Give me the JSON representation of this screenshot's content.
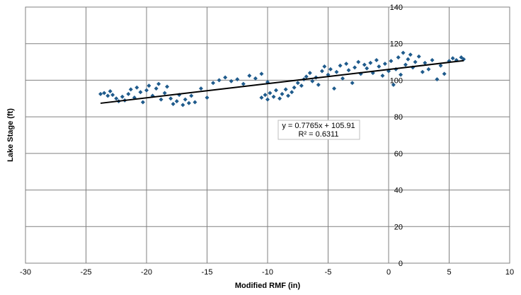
{
  "chart_data": {
    "type": "scatter",
    "title": "",
    "xlabel": "Modified RMF (in)",
    "ylabel": "Lake Stage (ft)",
    "xlim": [
      -30,
      10
    ],
    "ylim": [
      0,
      140
    ],
    "x_ticks": [
      "-30",
      "-25",
      "-20",
      "-15",
      "-10",
      "-5",
      "0",
      "5",
      "10"
    ],
    "y_ticks": [
      "0",
      "20",
      "40",
      "60",
      "80",
      "100",
      "120",
      "140"
    ],
    "grid": true,
    "marker_color": "#1f5b8c",
    "trendline": {
      "equation": "y = 0.7765x + 105.91",
      "r_squared": "R² = 0.6311",
      "slope": 0.7765,
      "intercept": 105.91,
      "x_range": [
        -23.8,
        6.2
      ],
      "color": "#000000"
    },
    "series": [
      {
        "points": [
          [
            -23.8,
            92.5
          ],
          [
            -23.5,
            93.0
          ],
          [
            -23.2,
            91.5
          ],
          [
            -23.0,
            94.0
          ],
          [
            -22.8,
            92.0
          ],
          [
            -22.5,
            90.0
          ],
          [
            -22.3,
            88.5
          ],
          [
            -22.0,
            91.0
          ],
          [
            -21.8,
            89.0
          ],
          [
            -21.5,
            92.5
          ],
          [
            -21.3,
            95.0
          ],
          [
            -21.0,
            90.5
          ],
          [
            -20.8,
            96.0
          ],
          [
            -20.5,
            93.5
          ],
          [
            -20.3,
            88.0
          ],
          [
            -20.0,
            94.5
          ],
          [
            -19.8,
            97.0
          ],
          [
            -19.5,
            91.5
          ],
          [
            -19.2,
            95.5
          ],
          [
            -19.0,
            98.0
          ],
          [
            -18.8,
            89.5
          ],
          [
            -18.5,
            93.0
          ],
          [
            -18.3,
            96.5
          ],
          [
            -18.0,
            90.0
          ],
          [
            -17.8,
            87.0
          ],
          [
            -17.5,
            88.5
          ],
          [
            -17.3,
            92.0
          ],
          [
            -17.0,
            86.5
          ],
          [
            -16.8,
            89.5
          ],
          [
            -16.5,
            87.5
          ],
          [
            -16.3,
            91.5
          ],
          [
            -16.0,
            88.0
          ],
          [
            -15.5,
            95.5
          ],
          [
            -15.0,
            90.5
          ],
          [
            -14.5,
            98.5
          ],
          [
            -14.0,
            100.0
          ],
          [
            -13.5,
            101.5
          ],
          [
            -13.0,
            99.5
          ],
          [
            -12.5,
            100.5
          ],
          [
            -12.0,
            98.0
          ],
          [
            -11.5,
            102.5
          ],
          [
            -11.0,
            101.0
          ],
          [
            -10.5,
            103.5
          ],
          [
            -10.0,
            99.0
          ],
          [
            -10.5,
            90.5
          ],
          [
            -10.2,
            92.0
          ],
          [
            -10.0,
            89.5
          ],
          [
            -9.8,
            93.0
          ],
          [
            -9.5,
            91.0
          ],
          [
            -9.3,
            94.5
          ],
          [
            -9.0,
            90.0
          ],
          [
            -8.8,
            92.5
          ],
          [
            -8.5,
            95.0
          ],
          [
            -8.3,
            91.5
          ],
          [
            -8.0,
            93.5
          ],
          [
            -7.8,
            96.0
          ],
          [
            -7.5,
            98.5
          ],
          [
            -7.2,
            97.0
          ],
          [
            -7.0,
            100.5
          ],
          [
            -6.8,
            102.0
          ],
          [
            -6.5,
            104.0
          ],
          [
            -6.3,
            99.5
          ],
          [
            -6.0,
            101.5
          ],
          [
            -5.8,
            97.5
          ],
          [
            -5.5,
            105.0
          ],
          [
            -5.3,
            107.5
          ],
          [
            -5.0,
            103.0
          ],
          [
            -4.8,
            106.0
          ],
          [
            -4.5,
            95.5
          ],
          [
            -4.3,
            104.5
          ],
          [
            -4.0,
            108.0
          ],
          [
            -3.8,
            101.0
          ],
          [
            -3.5,
            109.0
          ],
          [
            -3.3,
            105.5
          ],
          [
            -3.0,
            98.5
          ],
          [
            -2.8,
            107.0
          ],
          [
            -2.5,
            110.0
          ],
          [
            -2.3,
            103.5
          ],
          [
            -2.0,
            108.5
          ],
          [
            -1.8,
            106.5
          ],
          [
            -1.5,
            109.5
          ],
          [
            -1.3,
            104.0
          ],
          [
            -1.0,
            111.0
          ],
          [
            -0.8,
            107.5
          ],
          [
            -0.5,
            102.5
          ],
          [
            -0.3,
            109.0
          ],
          [
            0.0,
            105.0
          ],
          [
            0.2,
            110.5
          ],
          [
            0.4,
            97.5
          ],
          [
            0.6,
            106.0
          ],
          [
            0.8,
            112.5
          ],
          [
            1.0,
            103.0
          ],
          [
            1.2,
            115.0
          ],
          [
            1.4,
            108.5
          ],
          [
            1.6,
            111.5
          ],
          [
            1.8,
            114.0
          ],
          [
            2.0,
            107.0
          ],
          [
            2.2,
            110.0
          ],
          [
            2.5,
            113.0
          ],
          [
            2.8,
            104.5
          ],
          [
            3.0,
            109.5
          ],
          [
            3.3,
            106.0
          ],
          [
            3.6,
            111.0
          ],
          [
            4.0,
            100.5
          ],
          [
            4.3,
            108.0
          ],
          [
            4.6,
            103.5
          ],
          [
            5.0,
            110.5
          ],
          [
            5.3,
            112.0
          ],
          [
            5.6,
            111.0
          ],
          [
            6.0,
            112.5
          ],
          [
            6.2,
            111.5
          ]
        ]
      }
    ]
  }
}
